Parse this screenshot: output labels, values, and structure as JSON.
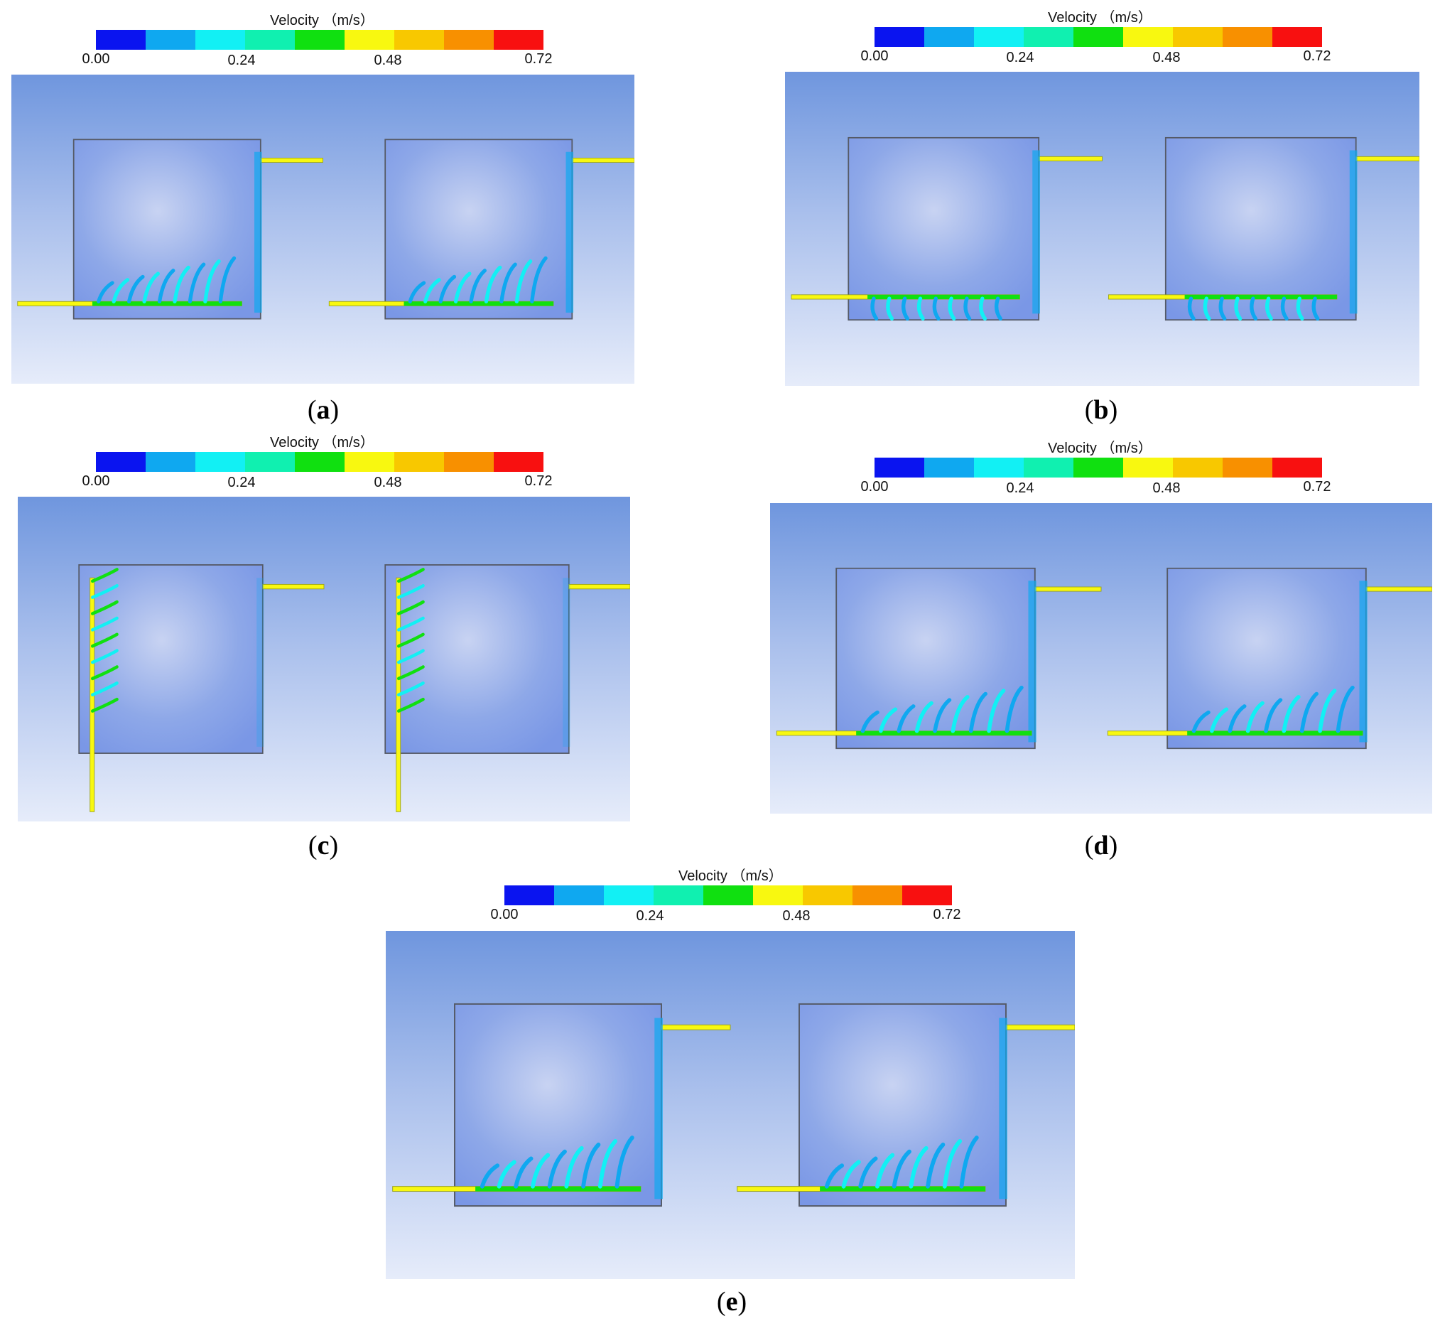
{
  "legend": {
    "title": "Velocity （m/s）",
    "ticks": [
      "0.00",
      "0.24",
      "0.48",
      "0.72"
    ],
    "colors": [
      "#0a14f0",
      "#0fa8f0",
      "#12f0f4",
      "#10f0b0",
      "#10e010",
      "#f8f810",
      "#f8c800",
      "#f89000",
      "#f81010"
    ]
  },
  "panels": [
    {
      "id": "a",
      "label": "a",
      "caption_open": "(",
      "caption_close": ")",
      "bold": true,
      "layout": "bottom-inlet-upward"
    },
    {
      "id": "b",
      "label": "b",
      "caption_open": "(",
      "caption_close": ")",
      "bold": true,
      "layout": "bottom-inlet-downward"
    },
    {
      "id": "c",
      "label": "c",
      "caption_open": "(",
      "caption_close": ")",
      "bold": false,
      "layout": "left-vertical-inlet"
    },
    {
      "id": "d",
      "label": "d",
      "caption_open": "(",
      "caption_close": ")",
      "bold": false,
      "layout": "bottom-inlet-short"
    },
    {
      "id": "e",
      "label": "e",
      "caption_open": "(",
      "caption_close": ")",
      "bold": false,
      "layout": "bottom-inlet-upward"
    }
  ]
}
